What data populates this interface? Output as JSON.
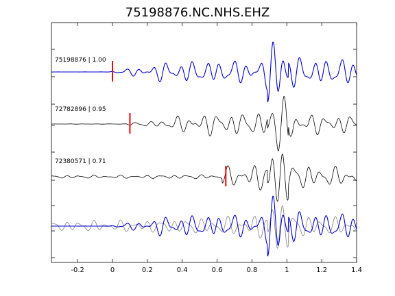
{
  "chart_data": {
    "type": "line",
    "title": "75198876.NC.NHS.EHZ",
    "xlabel": "",
    "ylabel": "",
    "xlim": [
      -0.35,
      1.4
    ],
    "xticks": [
      -0.2,
      0,
      0.2,
      0.4,
      0.6,
      0.8,
      1,
      1.2,
      1.4
    ],
    "xtick_labels": [
      "-0.2",
      "0",
      "0.2",
      "0.4",
      "0.6",
      "0.8",
      "1",
      "1.2",
      "1.4"
    ],
    "grid": false,
    "traces": [
      {
        "label": "75198876 | 1.00",
        "color": "#0000cc",
        "pick_time": 0.0,
        "seed": 1,
        "envelope": [
          [
            -0.35,
            0.01
          ],
          [
            -0.02,
            0.02
          ],
          [
            0.1,
            0.25
          ],
          [
            0.18,
            0.35
          ],
          [
            0.3,
            0.7
          ],
          [
            0.5,
            0.75
          ],
          [
            0.7,
            0.8
          ],
          [
            0.85,
            0.8
          ],
          [
            0.9,
            1.2
          ],
          [
            0.95,
            1.6
          ],
          [
            1.0,
            1.3
          ],
          [
            1.1,
            0.9
          ],
          [
            1.4,
            0.9
          ]
        ]
      },
      {
        "label": "72782896 | 0.95",
        "color": "#000000",
        "pick_time": 0.1,
        "seed": 2,
        "envelope": [
          [
            -0.35,
            0.03
          ],
          [
            0.05,
            0.05
          ],
          [
            0.15,
            0.15
          ],
          [
            0.25,
            0.2
          ],
          [
            0.35,
            0.5
          ],
          [
            0.6,
            0.8
          ],
          [
            0.8,
            0.75
          ],
          [
            0.9,
            1.0
          ],
          [
            0.95,
            1.5
          ],
          [
            1.0,
            1.1
          ],
          [
            1.1,
            0.7
          ],
          [
            1.4,
            0.6
          ]
        ]
      },
      {
        "label": "72380571 | 0.71",
        "color": "#000000",
        "pick_time": 0.65,
        "seed": 3,
        "envelope": [
          [
            -0.35,
            0.4
          ],
          [
            0.2,
            0.45
          ],
          [
            0.5,
            0.6
          ],
          [
            0.7,
            0.7
          ],
          [
            0.85,
            0.9
          ],
          [
            0.9,
            1.2
          ],
          [
            0.95,
            1.4
          ],
          [
            1.05,
            0.9
          ],
          [
            1.2,
            0.7
          ],
          [
            1.4,
            0.6
          ]
        ]
      }
    ],
    "stack": {
      "series_colors": [
        "#808080",
        "#0000cc"
      ]
    }
  }
}
